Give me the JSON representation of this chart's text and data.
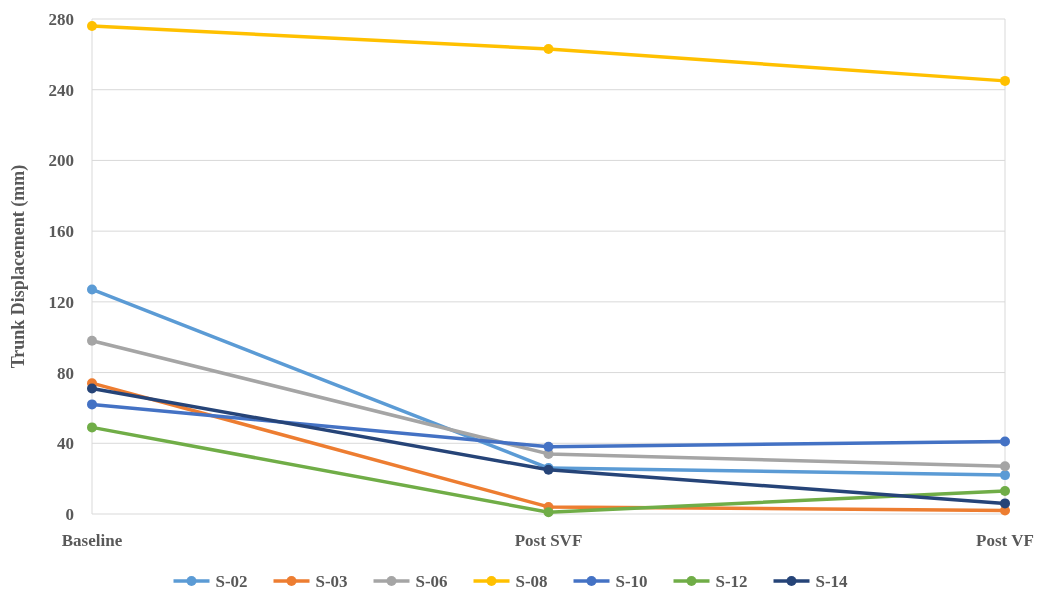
{
  "chart_data": {
    "type": "line",
    "ylabel": "Trunk Displacement (mm)",
    "categories": [
      "Baseline",
      "Post SVF",
      "Post VF"
    ],
    "series": [
      {
        "name": "S-02",
        "color": "#5b9bd5",
        "values": [
          127,
          26,
          22
        ]
      },
      {
        "name": "S-03",
        "color": "#ed7d31",
        "values": [
          74,
          4,
          2
        ]
      },
      {
        "name": "S-06",
        "color": "#a5a5a5",
        "values": [
          98,
          34,
          27
        ]
      },
      {
        "name": "S-08",
        "color": "#ffc000",
        "values": [
          276,
          263,
          245
        ]
      },
      {
        "name": "S-10",
        "color": "#4472c4",
        "values": [
          62,
          38,
          41
        ]
      },
      {
        "name": "S-12",
        "color": "#70ad47",
        "values": [
          49,
          1,
          13
        ]
      },
      {
        "name": "S-14",
        "color": "#264478",
        "values": [
          71,
          25,
          6
        ]
      }
    ],
    "ylim": [
      0,
      280
    ],
    "yticks": [
      0,
      40,
      80,
      120,
      160,
      200,
      240,
      280
    ],
    "grid": "y",
    "legend": "bottom",
    "marker": "circle",
    "line_style": "solid"
  }
}
